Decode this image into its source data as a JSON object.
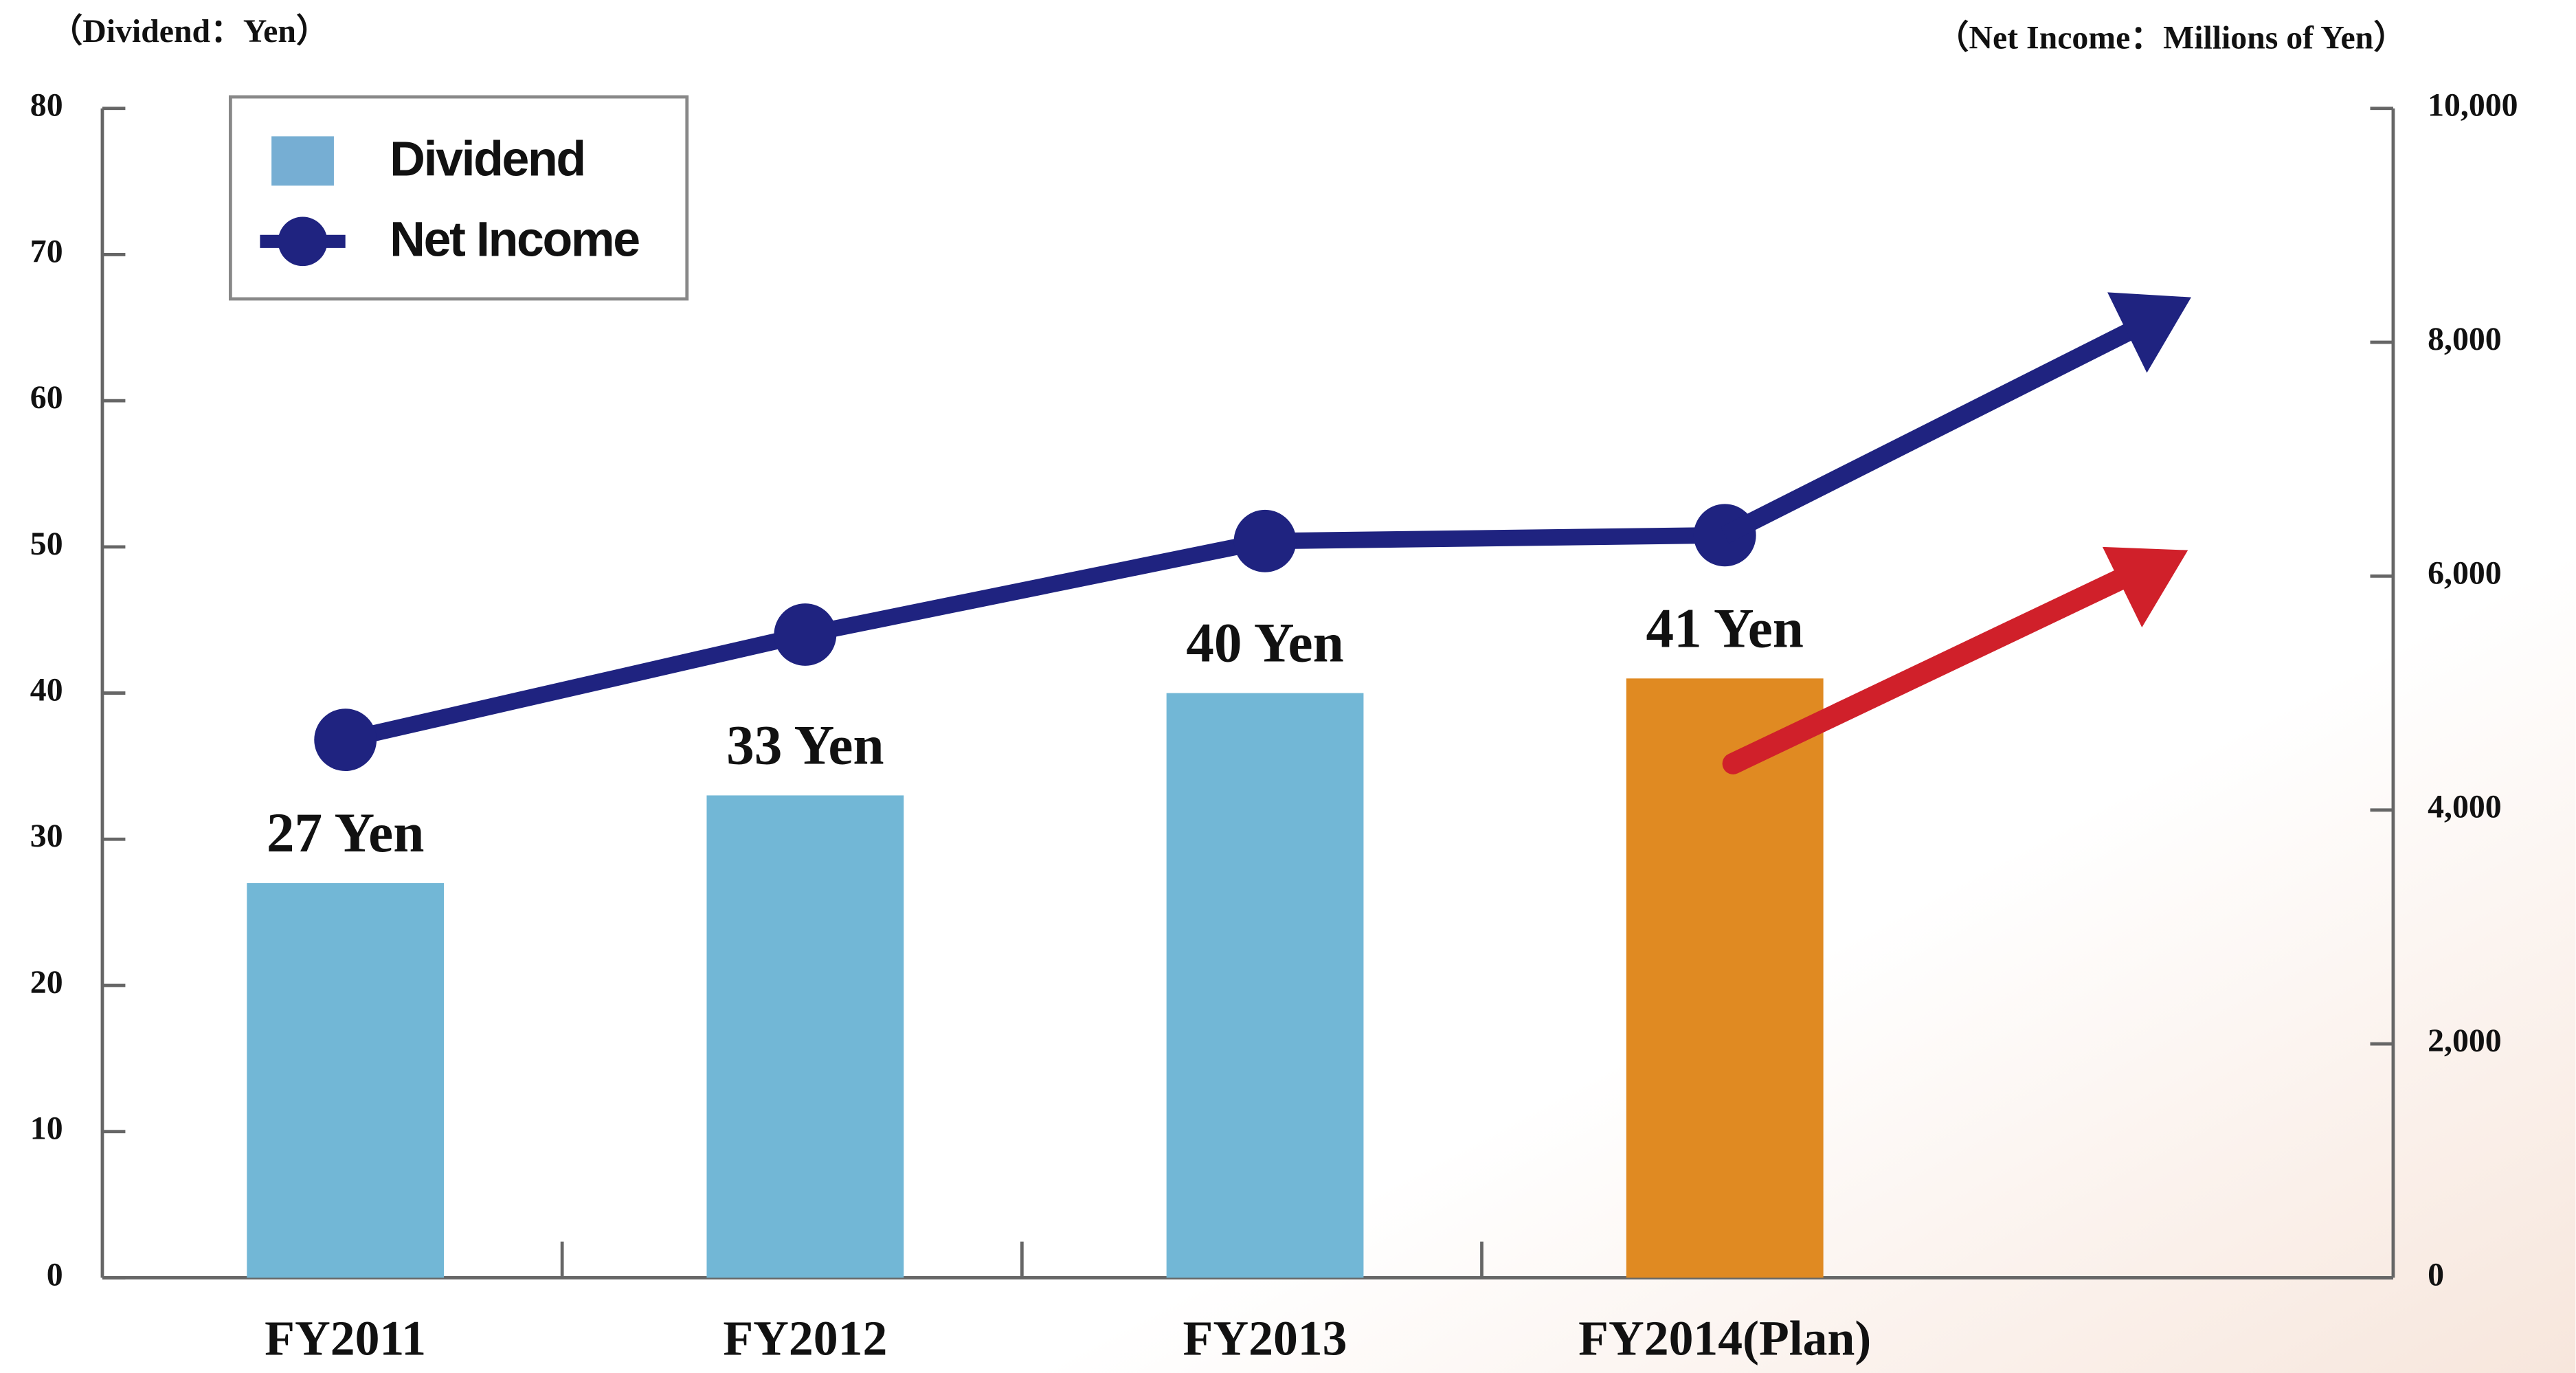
{
  "chart_data": {
    "type": "bar_line",
    "y_label": "（Dividend：Yen）",
    "y2_label": "（Net Income：Millions of Yen）",
    "categories": [
      "FY2011",
      "FY2012",
      "FY2013",
      "FY2014(Plan)"
    ],
    "series": [
      {
        "name": "Dividend",
        "type": "bar",
        "color": "#72b7d6",
        "colors": [
          "#72b7d6",
          "#72b7d6",
          "#72b7d6",
          "#e08a22"
        ],
        "values": [
          27,
          33,
          40,
          41
        ],
        "value_labels": [
          "27 Yen",
          "33 Yen",
          "40 Yen",
          "41 Yen"
        ]
      },
      {
        "name": "Net Income",
        "type": "line",
        "axis": "y2",
        "color": "#1f2380",
        "values": [
          4600,
          5500,
          6300,
          6350
        ]
      }
    ],
    "ylim": [
      0,
      80
    ],
    "yticks": [
      0,
      10,
      20,
      30,
      40,
      50,
      60,
      70,
      80
    ],
    "y2lim": [
      0,
      10000
    ],
    "y2ticks": [
      0,
      {
        "value": 2000,
        "label": "2,000"
      },
      {
        "value": 4000,
        "label": "4,000"
      },
      {
        "value": 6000,
        "label": "6,000"
      },
      {
        "value": 8000,
        "label": "8,000"
      },
      {
        "value": 10000,
        "label": "10,000"
      }
    ],
    "legend": "upper left"
  }
}
